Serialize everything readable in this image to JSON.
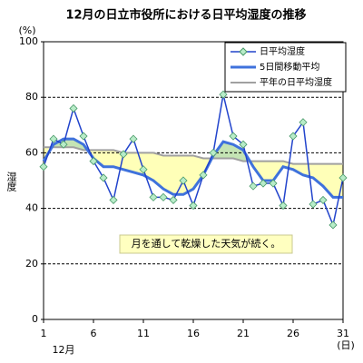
{
  "chart_data": {
    "type": "line",
    "title": "12月の日立市役所における日平均湿度の推移",
    "y_unit": "(%)",
    "y_label": "湿度",
    "x_unit": "(日)",
    "x_month": "12月",
    "annotation": "月を通して乾燥した天気が続く。",
    "x": [
      1,
      2,
      3,
      4,
      5,
      6,
      7,
      8,
      9,
      10,
      11,
      12,
      13,
      14,
      15,
      16,
      17,
      18,
      19,
      20,
      21,
      22,
      23,
      24,
      25,
      26,
      27,
      28,
      29,
      30,
      31
    ],
    "xlim": [
      1,
      31
    ],
    "xticks": [
      1,
      6,
      11,
      16,
      21,
      26,
      31
    ],
    "ylim": [
      0,
      100
    ],
    "yticks": [
      0,
      20,
      40,
      60,
      80,
      100
    ],
    "grid": true,
    "legend": "upper right",
    "series": [
      {
        "name": "日平均湿度",
        "color": "#2244cc",
        "marker_color": "#b8ecc8",
        "values": [
          55,
          65,
          63,
          76,
          66,
          57,
          51,
          43,
          59.5,
          65,
          54,
          44,
          44,
          43,
          50,
          41,
          52,
          60,
          81,
          66,
          63,
          48,
          49,
          49,
          41,
          66,
          71,
          41.5,
          43,
          34,
          51
        ]
      },
      {
        "name": "5日間移動平均",
        "color": "#3f72dc",
        "values": [
          57,
          63,
          65,
          65,
          63,
          58,
          55,
          55,
          54,
          53,
          52,
          50,
          47,
          45,
          45,
          47,
          52,
          59,
          64,
          63,
          61,
          55,
          50,
          50,
          55,
          54,
          52,
          51,
          48,
          44,
          44
        ]
      },
      {
        "name": "平年の日平均湿度",
        "color": "#a0a0a0",
        "values": [
          62,
          62,
          62,
          62,
          61,
          61,
          61,
          61,
          60,
          60,
          60,
          60,
          59,
          59,
          59,
          59,
          58,
          58,
          58,
          58,
          57,
          57,
          57,
          57,
          57,
          56,
          56,
          56,
          56,
          56,
          56
        ]
      }
    ]
  }
}
